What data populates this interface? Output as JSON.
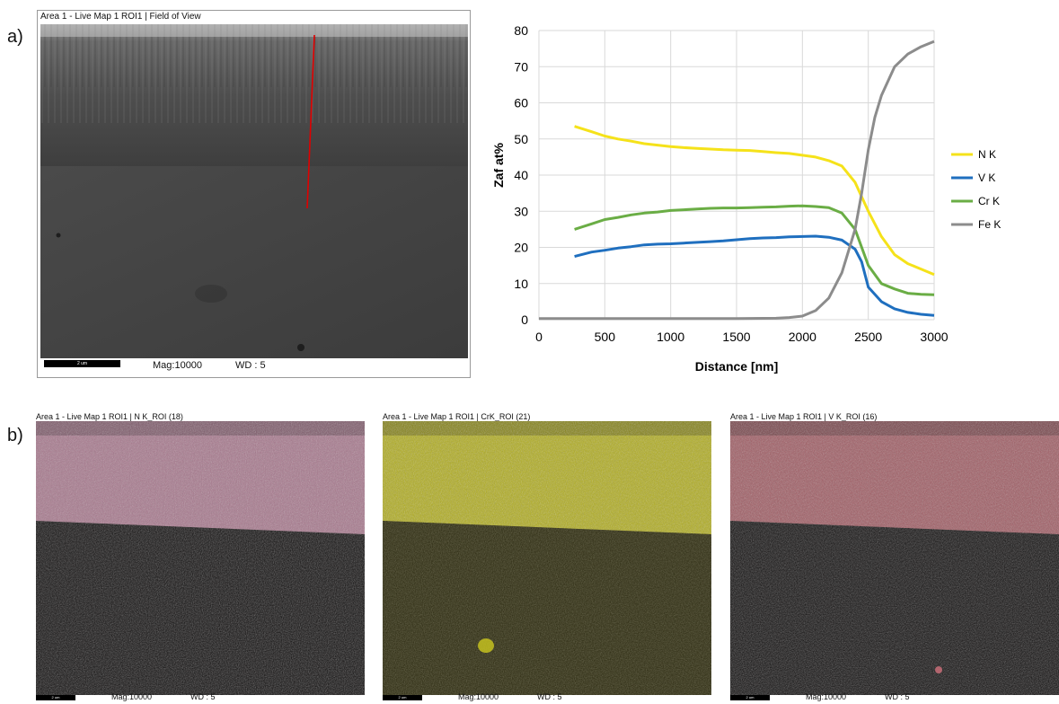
{
  "panel_labels": {
    "a": "a)",
    "b": "b)"
  },
  "sem_image": {
    "caption": "Area 1 - Live Map 1 ROI1 | Field of View",
    "scalebar_label": "2 um",
    "magnification": "Mag:10000",
    "wd": "WD : 5"
  },
  "chart_data": {
    "type": "line",
    "title": "",
    "xlabel": "Distance [nm]",
    "ylabel": "Zaf at%",
    "xlim": [
      0,
      3000
    ],
    "ylim": [
      0,
      80
    ],
    "x_ticks": [
      0,
      500,
      1000,
      1500,
      2000,
      2500,
      3000
    ],
    "y_ticks": [
      0,
      10,
      20,
      30,
      40,
      50,
      60,
      70,
      80
    ],
    "grid": true,
    "legend_position": "right",
    "series": [
      {
        "name": "N K",
        "color": "#f5e21a",
        "x": [
          270,
          400,
          500,
          600,
          700,
          800,
          900,
          1000,
          1100,
          1200,
          1300,
          1400,
          1500,
          1600,
          1700,
          1800,
          1900,
          2000,
          2100,
          2200,
          2300,
          2400,
          2500,
          2600,
          2700,
          2800,
          2900,
          3000
        ],
        "y": [
          53.5,
          52,
          50.8,
          50,
          49.4,
          48.7,
          48.3,
          47.9,
          47.6,
          47.4,
          47.2,
          47.0,
          46.9,
          46.8,
          46.5,
          46.2,
          46.0,
          45.5,
          45,
          44,
          42.5,
          38,
          30,
          23,
          18,
          15.5,
          14,
          12.5
        ]
      },
      {
        "name": "V K",
        "color": "#1f6fbf",
        "x": [
          270,
          400,
          500,
          600,
          700,
          800,
          900,
          1000,
          1100,
          1200,
          1300,
          1400,
          1500,
          1600,
          1700,
          1800,
          1900,
          2000,
          2100,
          2200,
          2300,
          2400,
          2450,
          2500,
          2600,
          2700,
          2800,
          2900,
          3000
        ],
        "y": [
          17.5,
          18.7,
          19.2,
          19.8,
          20.2,
          20.7,
          20.9,
          21.0,
          21.2,
          21.4,
          21.6,
          21.8,
          22.1,
          22.4,
          22.6,
          22.7,
          22.9,
          23.0,
          23.1,
          22.8,
          22,
          19.5,
          16,
          9,
          5,
          3,
          2,
          1.5,
          1.2
        ]
      },
      {
        "name": "Cr K",
        "color": "#6aad45",
        "x": [
          270,
          400,
          500,
          600,
          700,
          800,
          900,
          1000,
          1100,
          1200,
          1300,
          1400,
          1500,
          1600,
          1700,
          1800,
          1900,
          2000,
          2100,
          2200,
          2300,
          2400,
          2500,
          2600,
          2700,
          2800,
          2900,
          3000
        ],
        "y": [
          25,
          26.5,
          27.7,
          28.3,
          29,
          29.5,
          29.8,
          30.2,
          30.4,
          30.6,
          30.8,
          30.9,
          30.9,
          31,
          31.1,
          31.2,
          31.4,
          31.5,
          31.3,
          31,
          29.5,
          25,
          15,
          10,
          8.5,
          7.3,
          7.0,
          6.9
        ]
      },
      {
        "name": "Fe K",
        "color": "#8c8c8c",
        "x": [
          0,
          500,
          1000,
          1500,
          1800,
          1900,
          2000,
          2100,
          2200,
          2300,
          2400,
          2450,
          2500,
          2550,
          2600,
          2700,
          2800,
          2900,
          3000
        ],
        "y": [
          0.3,
          0.3,
          0.3,
          0.3,
          0.4,
          0.6,
          1,
          2.5,
          6,
          13,
          25,
          35,
          47,
          56,
          62,
          70,
          73.5,
          75.5,
          77
        ]
      }
    ]
  },
  "maps": [
    {
      "caption": "Area 1 - Live Map 1 ROI1 | N K_ROI (18)",
      "color": "#c98ea8",
      "scalebar_label": "2 um",
      "magnification": "Mag:10000",
      "wd": "WD : 5"
    },
    {
      "caption": "Area 1 - Live Map 1 ROI1 | CrK_ROI (21)",
      "color": "#d6d21e",
      "scalebar_label": "2 um",
      "magnification": "Mag:10000",
      "wd": "WD : 5"
    },
    {
      "caption": "Area 1 - Live Map 1 ROI1 | V K_ROI (16)",
      "color": "#c06a74",
      "scalebar_label": "2 um",
      "magnification": "Mag:10000",
      "wd": "WD : 5"
    }
  ]
}
